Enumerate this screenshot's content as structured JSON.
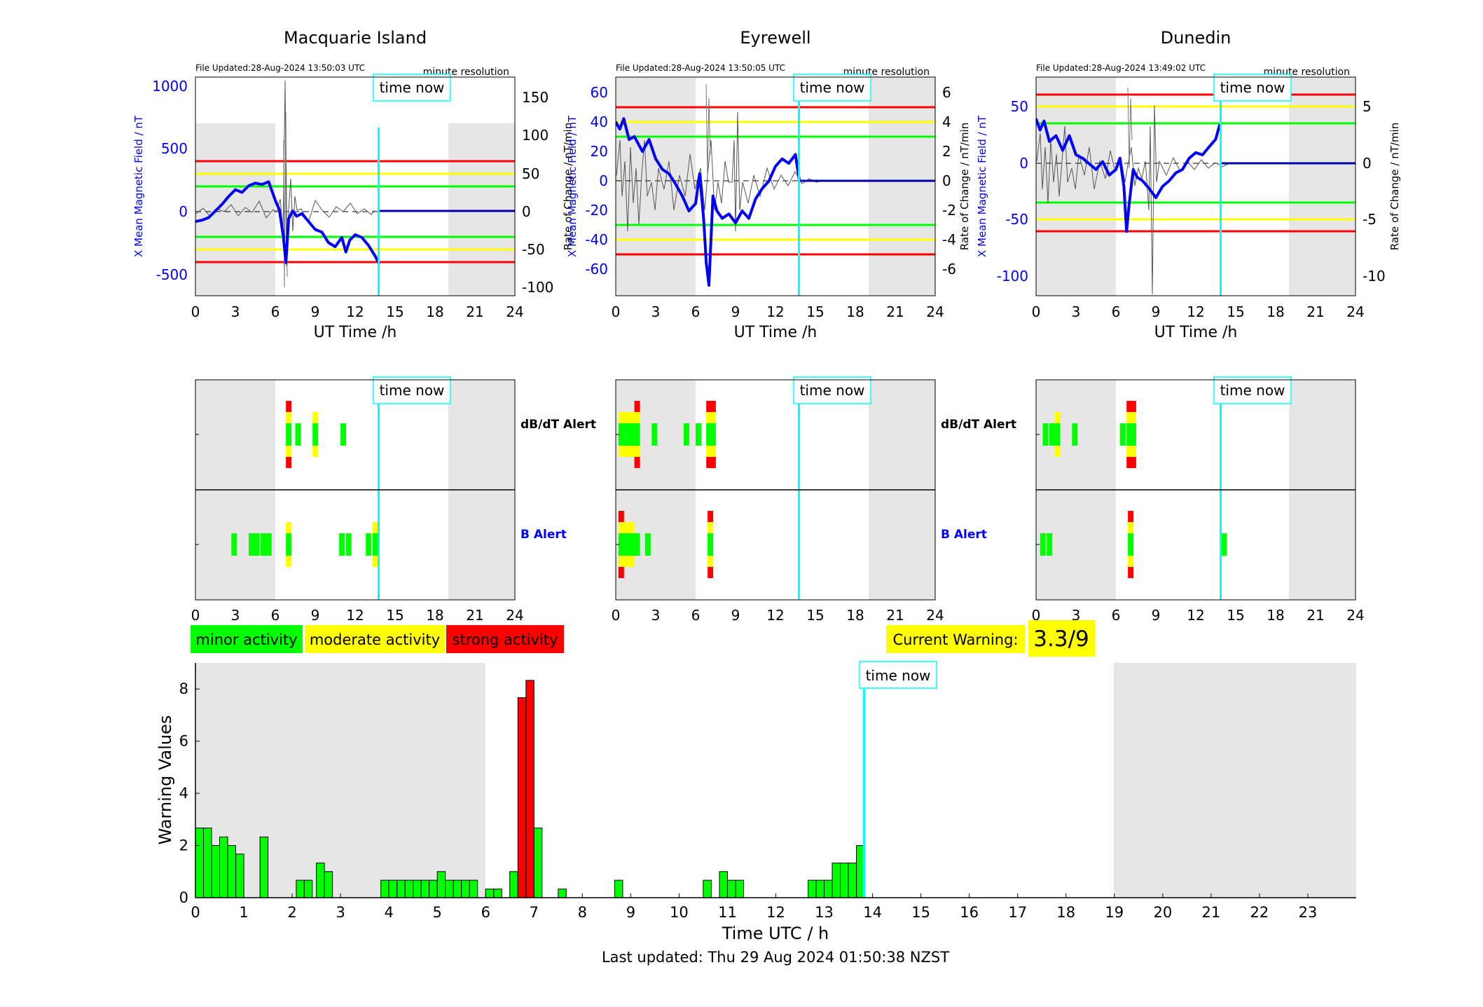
{
  "panels": [
    {
      "station": "Macquarie Island",
      "file_updated": "File Updated:28-Aug-2024 13:50:03 UTC",
      "resolution": "minute resolution",
      "left_ylabel": "X Mean Magnetic Field / nT",
      "right_ylabel": "Rate of Change / nT/min",
      "left_ticks": [
        "1000",
        "500",
        "0",
        "-500"
      ],
      "right_ticks": [
        "150",
        "100",
        "50",
        "0",
        "-50",
        "-100"
      ],
      "xlabel": "UT Time /h",
      "dbdt_label": "dB/dT Alert",
      "b_label": "B Alert"
    },
    {
      "station": "Eyrewell",
      "file_updated": "File Updated:28-Aug-2024 13:50:05 UTC",
      "resolution": "minute resolution",
      "left_ylabel": "X Mean Magnetic Field / nT",
      "right_ylabel": "Rate of Change / nT/min",
      "left_ticks": [
        "60",
        "40",
        "20",
        "0",
        "-20",
        "-40",
        "-60"
      ],
      "right_ticks": [
        "6",
        "4",
        "2",
        "0",
        "-2",
        "-4",
        "-6"
      ],
      "xlabel": "UT Time /h",
      "dbdt_label": "dB/dT Alert",
      "b_label": "B Alert"
    },
    {
      "station": "Dunedin",
      "file_updated": "File Updated:28-Aug-2024 13:49:02 UTC",
      "resolution": "minute resolution",
      "left_ylabel": "X Mean Magnetic Field / nT",
      "right_ylabel": "Rate of Change / nT/min",
      "left_ticks": [
        "50",
        "0",
        "-50",
        "-100"
      ],
      "right_ticks": [
        "5",
        "0",
        "-5",
        "-10"
      ],
      "xlabel": "UT Time /h",
      "dbdt_label": "dB/dT Alert",
      "b_label": "B Alert"
    }
  ],
  "time_now_label": "time now",
  "hour_ticks": [
    "0",
    "3",
    "6",
    "9",
    "12",
    "15",
    "18",
    "21",
    "24"
  ],
  "legend": {
    "minor": "minor activity",
    "moderate": "moderate activity",
    "strong": "strong activity"
  },
  "current_warning": {
    "label": "Current Warning:",
    "value": "3.3/9"
  },
  "colors": {
    "minor": "#00ff00",
    "moderate": "#ffff00",
    "strong": "#ff0000",
    "field_line": "#0000ff",
    "time_now": "#00ffff",
    "night_shade": "#e6e6e6"
  },
  "chart_data": [
    {
      "type": "line",
      "title": "Macquarie Island",
      "xlabel": "UT Time /h",
      "ylabel": "X Mean Magnetic Field / nT",
      "y2label": "Rate of Change / nT/min",
      "xlim": [
        0,
        24
      ],
      "ylim": [
        -600,
        1050
      ],
      "y2lim": [
        -112,
        180
      ],
      "time_now": 13.8,
      "night": [
        [
          0,
          6
        ],
        [
          19,
          24
        ]
      ],
      "thresholds": {
        "red": [
          400,
          -400
        ],
        "yellow": [
          300,
          -300
        ],
        "green": [
          200,
          -200
        ]
      },
      "series": [
        {
          "name": "X Mean Magnetic Field",
          "x": [
            0,
            0.5,
            1,
            1.5,
            2,
            2.5,
            3,
            3.5,
            4,
            4.5,
            5,
            5.5,
            6,
            6.3,
            6.6,
            6.8,
            7,
            7.3,
            7.6,
            8,
            8.5,
            9,
            9.5,
            10,
            10.5,
            11,
            11.3,
            11.6,
            12,
            12.5,
            13,
            13.5,
            13.8
          ],
          "y": [
            -40,
            -30,
            -10,
            40,
            90,
            150,
            200,
            180,
            230,
            250,
            240,
            260,
            120,
            50,
            -150,
            -350,
            -20,
            40,
            0,
            20,
            -40,
            -100,
            -120,
            -200,
            -230,
            -160,
            -270,
            -180,
            -140,
            -160,
            -220,
            -300,
            -360
          ]
        }
      ]
    },
    {
      "type": "line",
      "title": "Eyrewell",
      "xlabel": "UT Time /h",
      "ylabel": "X Mean Magnetic Field / nT",
      "y2label": "Rate of Change / nT/min",
      "xlim": [
        0,
        24
      ],
      "ylim": [
        -77,
        70
      ],
      "y2lim": [
        -7.7,
        7.0
      ],
      "time_now": 13.8,
      "night": [
        [
          0,
          6
        ],
        [
          19,
          24
        ]
      ],
      "thresholds": {
        "red": [
          50,
          -50
        ],
        "yellow": [
          40,
          -40
        ],
        "green": [
          30,
          -30
        ]
      },
      "series": [
        {
          "name": "X Mean Magnetic Field",
          "x": [
            0,
            0.3,
            0.6,
            1,
            1.4,
            2,
            2.5,
            3,
            3.5,
            4,
            4.5,
            5,
            5.5,
            6,
            6.3,
            6.6,
            6.8,
            7,
            7.3,
            7.6,
            8,
            8.5,
            9,
            9.5,
            10,
            10.5,
            11,
            11.5,
            12,
            12.5,
            13,
            13.5,
            13.8
          ],
          "y": [
            40,
            35,
            42,
            28,
            30,
            20,
            28,
            15,
            8,
            5,
            -2,
            -10,
            -20,
            -15,
            5,
            -25,
            -55,
            -70,
            -10,
            -20,
            -25,
            -22,
            -28,
            -20,
            -25,
            -12,
            -5,
            0,
            10,
            15,
            12,
            18,
            0
          ]
        }
      ]
    },
    {
      "type": "line",
      "title": "Dunedin",
      "xlabel": "UT Time /h",
      "ylabel": "X Mean Magnetic Field / nT",
      "y2label": "Rate of Change / nT/min",
      "xlim": [
        0,
        24
      ],
      "ylim": [
        -117,
        77
      ],
      "y2lim": [
        -11.7,
        7.7
      ],
      "time_now": 13.8,
      "night": [
        [
          0,
          6
        ],
        [
          19,
          24
        ]
      ],
      "thresholds": {
        "red": [
          60,
          -60
        ],
        "yellow": [
          50,
          -50
        ],
        "green": [
          35,
          -35
        ]
      },
      "series": [
        {
          "name": "X Mean Magnetic Field",
          "x": [
            0,
            0.3,
            0.6,
            1,
            1.5,
            2,
            2.5,
            3,
            3.5,
            4,
            4.5,
            5,
            5.5,
            6,
            6.3,
            6.6,
            6.8,
            7,
            7.3,
            7.6,
            8,
            8.5,
            9,
            9.5,
            10,
            10.5,
            11,
            11.5,
            12,
            12.5,
            13,
            13.5,
            13.8
          ],
          "y": [
            40,
            30,
            38,
            20,
            25,
            12,
            25,
            8,
            5,
            0,
            -5,
            2,
            -10,
            -5,
            5,
            -20,
            -60,
            -35,
            -5,
            -12,
            -15,
            -22,
            -30,
            -20,
            -15,
            -8,
            -5,
            5,
            10,
            8,
            15,
            22,
            35
          ]
        }
      ]
    },
    {
      "type": "bar",
      "title": "",
      "xlabel": "Time UTC / h",
      "ylabel": "Warning Values",
      "xlim": [
        0,
        24
      ],
      "ylim": [
        0,
        9
      ],
      "time_now": 13.8,
      "night": [
        [
          0,
          6
        ],
        [
          19,
          24
        ]
      ],
      "x": [
        0.083,
        0.25,
        0.417,
        0.583,
        0.75,
        0.917,
        1.417,
        2.167,
        2.333,
        2.583,
        2.75,
        3.917,
        4.083,
        4.25,
        4.417,
        4.583,
        4.75,
        4.917,
        5.083,
        5.25,
        5.417,
        5.583,
        5.75,
        6.083,
        6.25,
        6.583,
        6.75,
        6.917,
        7.083,
        7.583,
        8.75,
        10.583,
        10.917,
        11.083,
        11.25,
        12.75,
        12.917,
        13.083,
        13.25,
        13.417,
        13.583,
        13.75
      ],
      "values": [
        2.67,
        2.67,
        2.0,
        2.33,
        2.0,
        1.67,
        2.33,
        0.67,
        0.67,
        1.33,
        1.0,
        0.67,
        0.67,
        0.67,
        0.67,
        0.67,
        0.67,
        0.67,
        1.0,
        0.67,
        0.67,
        0.67,
        0.67,
        0.33,
        0.33,
        1.0,
        7.67,
        8.33,
        2.67,
        0.33,
        0.67,
        0.67,
        1.0,
        0.67,
        0.67,
        0.67,
        0.67,
        0.67,
        1.33,
        1.33,
        1.33,
        2.0
      ],
      "xticks": [
        "0",
        "1",
        "2",
        "3",
        "4",
        "5",
        "6",
        "7",
        "8",
        "9",
        "10",
        "11",
        "12",
        "13",
        "14",
        "15",
        "16",
        "17",
        "18",
        "19",
        "20",
        "21",
        "22",
        "23"
      ],
      "yticks": [
        "0",
        "2",
        "4",
        "6",
        "8"
      ]
    }
  ],
  "alerts": [
    {
      "dbdt": [
        [
          6.8,
          3
        ],
        [
          7.5,
          1
        ],
        [
          8.8,
          2
        ],
        [
          10.9,
          1
        ]
      ],
      "b": [
        [
          2.7,
          1
        ],
        [
          4.0,
          1
        ],
        [
          4.4,
          1
        ],
        [
          4.9,
          1
        ],
        [
          5.3,
          1
        ],
        [
          6.8,
          2
        ],
        [
          10.8,
          1
        ],
        [
          11.3,
          1
        ],
        [
          12.8,
          1
        ],
        [
          13.3,
          2
        ]
      ]
    },
    {
      "dbdt": [
        [
          0.2,
          2
        ],
        [
          0.6,
          2
        ],
        [
          1.0,
          2
        ],
        [
          1.4,
          3
        ],
        [
          2.7,
          1
        ],
        [
          5.1,
          1
        ],
        [
          6.0,
          1
        ],
        [
          6.8,
          3
        ],
        [
          7.1,
          3
        ]
      ],
      "b": [
        [
          0.2,
          3
        ],
        [
          0.6,
          2
        ],
        [
          1.0,
          2
        ],
        [
          1.4,
          1
        ],
        [
          2.2,
          1
        ],
        [
          6.9,
          3
        ]
      ]
    },
    {
      "dbdt": [
        [
          0.5,
          1
        ],
        [
          1.0,
          1
        ],
        [
          1.4,
          2
        ],
        [
          2.7,
          1
        ],
        [
          6.3,
          1
        ],
        [
          6.8,
          3
        ],
        [
          7.1,
          3
        ]
      ],
      "b": [
        [
          0.3,
          1
        ],
        [
          0.8,
          1
        ],
        [
          6.9,
          3
        ],
        [
          13.9,
          1
        ]
      ]
    }
  ],
  "bottom": {
    "ylabel": "Warning Values",
    "xlabel": "Time UTC / h",
    "last_updated": "Last updated: Thu 29 Aug 2024 01:50:38 NZST"
  }
}
